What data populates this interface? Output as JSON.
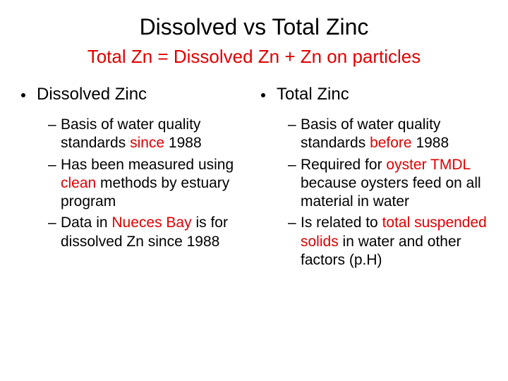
{
  "title": "Dissolved vs Total Zinc",
  "subtitle": "Total Zn = Dissolved Zn + Zn on particles",
  "colors": {
    "text": "#000000",
    "highlight": "#e00000",
    "background": "#ffffff"
  },
  "left": {
    "heading": "Dissolved Zinc",
    "items": [
      {
        "pre": "Basis of water quality standards ",
        "hl": "since",
        "post": " 1988"
      },
      {
        "pre": "Has been measured using ",
        "hl": "clean",
        "post": " methods by estuary program"
      },
      {
        "pre": "Data in ",
        "hl": "Nueces Bay",
        "post": " is for dissolved Zn since 1988"
      }
    ]
  },
  "right": {
    "heading": "Total Zinc",
    "items": [
      {
        "pre": "Basis of water quality standards ",
        "hl": "before",
        "post": " 1988"
      },
      {
        "pre": "Required for ",
        "hl": "oyster TMDL",
        "post": " because oysters feed on all material in water"
      },
      {
        "pre": "Is related to ",
        "hl": "total suspended solids",
        "post": " in water and other factors (p.H)"
      }
    ]
  }
}
